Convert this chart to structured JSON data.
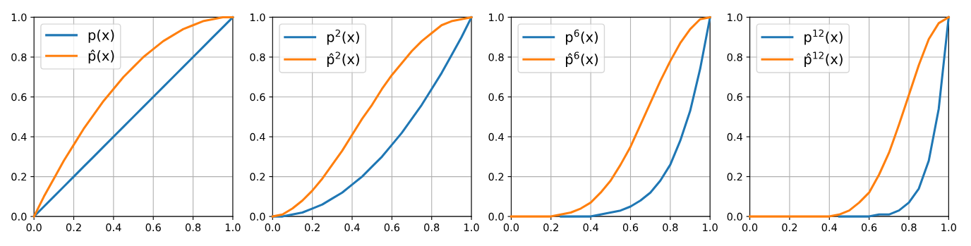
{
  "chart_data": [
    {
      "type": "line",
      "x": [
        0,
        0.05,
        0.1,
        0.15,
        0.2,
        0.25,
        0.3,
        0.35,
        0.4,
        0.45,
        0.5,
        0.55,
        0.6,
        0.65,
        0.7,
        0.75,
        0.8,
        0.85,
        0.9,
        0.95,
        1
      ],
      "series": [
        {
          "name": "p(x)",
          "color": "#1f77b4",
          "values": [
            0,
            0.05,
            0.1,
            0.15,
            0.2,
            0.25,
            0.3,
            0.35,
            0.4,
            0.45,
            0.5,
            0.55,
            0.6,
            0.65,
            0.7,
            0.75,
            0.8,
            0.85,
            0.9,
            0.95,
            1
          ]
        },
        {
          "name": "p̂(x)",
          "color": "#ff7f0e",
          "values": [
            0,
            0.1,
            0.19,
            0.28,
            0.36,
            0.44,
            0.51,
            0.58,
            0.64,
            0.7,
            0.75,
            0.8,
            0.84,
            0.88,
            0.91,
            0.94,
            0.96,
            0.98,
            0.99,
            1,
            1
          ]
        }
      ],
      "xlim": [
        0,
        1
      ],
      "ylim": [
        0,
        1
      ],
      "xticks": [
        {
          "value": 0,
          "label": "0.0"
        },
        {
          "value": 0.2,
          "label": "0.2"
        },
        {
          "value": 0.4,
          "label": "0.4"
        },
        {
          "value": 0.6,
          "label": "0.6"
        },
        {
          "value": 0.8,
          "label": "0.8"
        },
        {
          "value": 1,
          "label": "1.0"
        }
      ],
      "yticks": [
        {
          "value": 0,
          "label": "0.0"
        },
        {
          "value": 0.2,
          "label": "0.2"
        },
        {
          "value": 0.4,
          "label": "0.4"
        },
        {
          "value": 0.6,
          "label": "0.6"
        },
        {
          "value": 0.8,
          "label": "0.8"
        },
        {
          "value": 1,
          "label": "1.0"
        }
      ],
      "grid": true,
      "legend": "top left",
      "line_style": "solid"
    },
    {
      "type": "line",
      "x": [
        0,
        0.05,
        0.1,
        0.15,
        0.2,
        0.25,
        0.3,
        0.35,
        0.4,
        0.45,
        0.5,
        0.55,
        0.6,
        0.65,
        0.7,
        0.75,
        0.8,
        0.85,
        0.9,
        0.95,
        1
      ],
      "series": [
        {
          "name": "p$^{2}$(x)",
          "color": "#1f77b4",
          "values": [
            0,
            0,
            0.01,
            0.02,
            0.04,
            0.06,
            0.09,
            0.12,
            0.16,
            0.2,
            0.25,
            0.3,
            0.36,
            0.42,
            0.49,
            0.56,
            0.64,
            0.72,
            0.81,
            0.9,
            1
          ]
        },
        {
          "name": "p̂$^{2}$(x)",
          "color": "#ff7f0e",
          "values": [
            0,
            0.01,
            0.04,
            0.08,
            0.13,
            0.19,
            0.26,
            0.33,
            0.41,
            0.49,
            0.56,
            0.64,
            0.71,
            0.77,
            0.83,
            0.88,
            0.92,
            0.96,
            0.98,
            0.99,
            1
          ]
        }
      ],
      "xlim": [
        0,
        1
      ],
      "ylim": [
        0,
        1
      ],
      "xticks": [
        {
          "value": 0,
          "label": "0.0"
        },
        {
          "value": 0.2,
          "label": "0.2"
        },
        {
          "value": 0.4,
          "label": "0.4"
        },
        {
          "value": 0.6,
          "label": "0.6"
        },
        {
          "value": 0.8,
          "label": "0.8"
        },
        {
          "value": 1,
          "label": "1.0"
        }
      ],
      "yticks": [
        {
          "value": 0,
          "label": "0.0"
        },
        {
          "value": 0.2,
          "label": "0.2"
        },
        {
          "value": 0.4,
          "label": "0.4"
        },
        {
          "value": 0.6,
          "label": "0.6"
        },
        {
          "value": 0.8,
          "label": "0.8"
        },
        {
          "value": 1,
          "label": "1.0"
        }
      ],
      "grid": true,
      "legend": "top left",
      "line_style": "solid"
    },
    {
      "type": "line",
      "x": [
        0,
        0.05,
        0.1,
        0.15,
        0.2,
        0.25,
        0.3,
        0.35,
        0.4,
        0.45,
        0.5,
        0.55,
        0.6,
        0.65,
        0.7,
        0.75,
        0.8,
        0.85,
        0.9,
        0.95,
        1
      ],
      "series": [
        {
          "name": "p$^{6}$(x)",
          "color": "#1f77b4",
          "values": [
            null,
            null,
            null,
            null,
            null,
            0,
            0,
            0,
            0,
            0.01,
            0.02,
            0.03,
            0.05,
            0.08,
            0.12,
            0.18,
            0.26,
            0.38,
            0.53,
            0.74,
            1
          ]
        },
        {
          "name": "p̂$^{6}$(x)",
          "color": "#ff7f0e",
          "values": [
            0,
            0,
            0,
            0,
            0,
            0.01,
            0.02,
            0.04,
            0.07,
            0.12,
            0.18,
            0.26,
            0.35,
            0.46,
            0.57,
            0.68,
            0.78,
            0.87,
            0.94,
            0.99,
            1
          ]
        }
      ],
      "xlim": [
        0,
        1
      ],
      "ylim": [
        0,
        1
      ],
      "xticks": [
        {
          "value": 0,
          "label": "0.0"
        },
        {
          "value": 0.2,
          "label": "0.2"
        },
        {
          "value": 0.4,
          "label": "0.4"
        },
        {
          "value": 0.6,
          "label": "0.6"
        },
        {
          "value": 0.8,
          "label": "0.8"
        },
        {
          "value": 1,
          "label": "1.0"
        }
      ],
      "yticks": [
        {
          "value": 0,
          "label": "0.0"
        },
        {
          "value": 0.2,
          "label": "0.2"
        },
        {
          "value": 0.4,
          "label": "0.4"
        },
        {
          "value": 0.6,
          "label": "0.6"
        },
        {
          "value": 0.8,
          "label": "0.8"
        },
        {
          "value": 1,
          "label": "1.0"
        }
      ],
      "grid": true,
      "legend": "top left",
      "line_style": "solid"
    },
    {
      "type": "line",
      "x": [
        0,
        0.05,
        0.1,
        0.15,
        0.2,
        0.25,
        0.3,
        0.35,
        0.4,
        0.45,
        0.5,
        0.55,
        0.6,
        0.65,
        0.7,
        0.75,
        0.8,
        0.85,
        0.9,
        0.95,
        1
      ],
      "series": [
        {
          "name": "p$^{12}$(x)",
          "color": "#1f77b4",
          "values": [
            null,
            null,
            null,
            null,
            null,
            null,
            null,
            null,
            null,
            0,
            0,
            0,
            0,
            0.01,
            0.01,
            0.03,
            0.07,
            0.14,
            0.28,
            0.54,
            1
          ]
        },
        {
          "name": "p̂$^{12}$(x)",
          "color": "#ff7f0e",
          "values": [
            0,
            0,
            0,
            0,
            0,
            0,
            0,
            0,
            0,
            0.01,
            0.03,
            0.07,
            0.12,
            0.21,
            0.32,
            0.46,
            0.61,
            0.76,
            0.89,
            0.97,
            1
          ]
        }
      ],
      "xlim": [
        0,
        1
      ],
      "ylim": [
        0,
        1
      ],
      "xticks": [
        {
          "value": 0,
          "label": "0.0"
        },
        {
          "value": 0.2,
          "label": "0.2"
        },
        {
          "value": 0.4,
          "label": "0.4"
        },
        {
          "value": 0.6,
          "label": "0.6"
        },
        {
          "value": 0.8,
          "label": "0.8"
        },
        {
          "value": 1,
          "label": "1.0"
        }
      ],
      "yticks": [
        {
          "value": 0,
          "label": "0.0"
        },
        {
          "value": 0.2,
          "label": "0.2"
        },
        {
          "value": 0.4,
          "label": "0.4"
        },
        {
          "value": 0.6,
          "label": "0.6"
        },
        {
          "value": 0.8,
          "label": "0.8"
        },
        {
          "value": 1,
          "label": "1.0"
        }
      ],
      "grid": true,
      "legend": "top left",
      "line_style": "solid"
    }
  ]
}
